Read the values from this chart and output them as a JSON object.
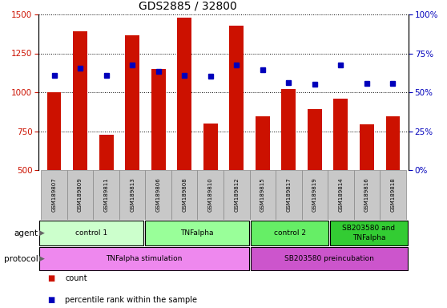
{
  "title": "GDS2885 / 32800",
  "samples": [
    "GSM189807",
    "GSM189809",
    "GSM189811",
    "GSM189813",
    "GSM189806",
    "GSM189808",
    "GSM189810",
    "GSM189812",
    "GSM189815",
    "GSM189817",
    "GSM189819",
    "GSM189814",
    "GSM189816",
    "GSM189818"
  ],
  "bar_values": [
    1000,
    1390,
    725,
    1365,
    1150,
    1480,
    800,
    1430,
    845,
    1020,
    890,
    960,
    795,
    845
  ],
  "blue_values": [
    1110,
    1155,
    1110,
    1175,
    1135,
    1110,
    1105,
    1175,
    1145,
    1060,
    1050,
    1175,
    1055,
    1055
  ],
  "bar_color": "#cc1100",
  "blue_color": "#0000bb",
  "ylim_left": [
    500,
    1500
  ],
  "ylim_right": [
    0,
    100
  ],
  "yticks_left": [
    500,
    750,
    1000,
    1250,
    1500
  ],
  "yticks_right": [
    0,
    25,
    50,
    75,
    100
  ],
  "agent_groups": [
    {
      "label": "control 1",
      "start": 0,
      "end": 4,
      "color": "#ccffcc"
    },
    {
      "label": "TNFalpha",
      "start": 4,
      "end": 8,
      "color": "#99ff99"
    },
    {
      "label": "control 2",
      "start": 8,
      "end": 11,
      "color": "#66ee66"
    },
    {
      "label": "SB203580 and\nTNFalpha",
      "start": 11,
      "end": 14,
      "color": "#33cc33"
    }
  ],
  "protocol_groups": [
    {
      "label": "TNFalpha stimulation",
      "start": 0,
      "end": 8,
      "color": "#ee88ee"
    },
    {
      "label": "SB203580 preincubation",
      "start": 8,
      "end": 14,
      "color": "#cc55cc"
    }
  ],
  "tick_bg_color": "#c8c8c8",
  "count_color": "#cc1100",
  "pct_color": "#0000bb",
  "legend_count": "count",
  "legend_pct": "percentile rank within the sample",
  "agent_label": "agent",
  "protocol_label": "protocol"
}
